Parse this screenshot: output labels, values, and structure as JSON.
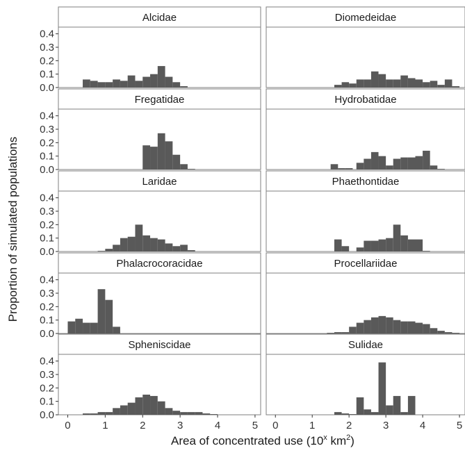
{
  "chart_data": {
    "type": "bar",
    "subtype": "faceted-histogram",
    "xlabel_prefix": "Area of concentrated use (10",
    "xlabel_sup1": "x",
    "xlabel_mid": " km",
    "xlabel_sup2": "2",
    "xlabel_suffix": ")",
    "ylabel": "Proportion of simulated populations",
    "xlim": [
      -0.25,
      5.15
    ],
    "ylim": [
      0,
      0.45
    ],
    "xticks": [
      "0",
      "1",
      "2",
      "3",
      "4",
      "5"
    ],
    "yticks": [
      "0.0",
      "0.1",
      "0.2",
      "0.3",
      "0.4"
    ],
    "bin_width": 0.2,
    "grid": false,
    "legend": "none",
    "bar_color": "#595959",
    "facets": [
      {
        "name": "Alcidae",
        "bins": [
          [
            0.5,
            0.06
          ],
          [
            0.7,
            0.05
          ],
          [
            0.9,
            0.04
          ],
          [
            1.1,
            0.04
          ],
          [
            1.3,
            0.06
          ],
          [
            1.5,
            0.05
          ],
          [
            1.7,
            0.09
          ],
          [
            1.9,
            0.05
          ],
          [
            2.1,
            0.08
          ],
          [
            2.3,
            0.1
          ],
          [
            2.5,
            0.16
          ],
          [
            2.7,
            0.08
          ],
          [
            2.9,
            0.04
          ],
          [
            3.1,
            0.01
          ]
        ]
      },
      {
        "name": "Diomedeidae",
        "bins": [
          [
            1.7,
            0.02
          ],
          [
            1.9,
            0.04
          ],
          [
            2.1,
            0.03
          ],
          [
            2.3,
            0.06
          ],
          [
            2.5,
            0.06
          ],
          [
            2.7,
            0.12
          ],
          [
            2.9,
            0.1
          ],
          [
            3.1,
            0.06
          ],
          [
            3.3,
            0.06
          ],
          [
            3.5,
            0.09
          ],
          [
            3.7,
            0.07
          ],
          [
            3.9,
            0.06
          ],
          [
            4.1,
            0.04
          ],
          [
            4.3,
            0.05
          ],
          [
            4.5,
            0.02
          ],
          [
            4.7,
            0.06
          ],
          [
            4.9,
            0.01
          ]
        ]
      },
      {
        "name": "Fregatidae",
        "bins": [
          [
            2.1,
            0.18
          ],
          [
            2.3,
            0.17
          ],
          [
            2.5,
            0.27
          ],
          [
            2.7,
            0.21
          ],
          [
            2.9,
            0.11
          ],
          [
            3.1,
            0.04
          ],
          [
            3.3,
            0.005
          ]
        ]
      },
      {
        "name": "Hydrobatidae",
        "bins": [
          [
            1.6,
            0.04
          ],
          [
            1.8,
            0.01
          ],
          [
            2.0,
            0.01
          ],
          [
            2.3,
            0.05
          ],
          [
            2.5,
            0.08
          ],
          [
            2.7,
            0.13
          ],
          [
            2.9,
            0.1
          ],
          [
            3.1,
            0.03
          ],
          [
            3.3,
            0.08
          ],
          [
            3.5,
            0.09
          ],
          [
            3.7,
            0.09
          ],
          [
            3.9,
            0.1
          ],
          [
            4.1,
            0.14
          ],
          [
            4.3,
            0.03
          ],
          [
            4.5,
            0.005
          ]
        ]
      },
      {
        "name": "Laridae",
        "bins": [
          [
            0.9,
            0.005
          ],
          [
            1.1,
            0.02
          ],
          [
            1.3,
            0.05
          ],
          [
            1.5,
            0.1
          ],
          [
            1.7,
            0.11
          ],
          [
            1.9,
            0.2
          ],
          [
            2.1,
            0.12
          ],
          [
            2.3,
            0.1
          ],
          [
            2.5,
            0.09
          ],
          [
            2.7,
            0.06
          ],
          [
            2.9,
            0.04
          ],
          [
            3.1,
            0.05
          ],
          [
            3.3,
            0.01
          ]
        ]
      },
      {
        "name": "Phaethontidae",
        "bins": [
          [
            1.7,
            0.09
          ],
          [
            1.9,
            0.04
          ],
          [
            2.3,
            0.03
          ],
          [
            2.5,
            0.08
          ],
          [
            2.7,
            0.08
          ],
          [
            2.9,
            0.09
          ],
          [
            3.1,
            0.1
          ],
          [
            3.3,
            0.2
          ],
          [
            3.5,
            0.12
          ],
          [
            3.7,
            0.09
          ],
          [
            3.9,
            0.09
          ],
          [
            4.1,
            0.005
          ]
        ]
      },
      {
        "name": "Phalacrocoracidae",
        "bins": [
          [
            0.1,
            0.09
          ],
          [
            0.3,
            0.11
          ],
          [
            0.5,
            0.08
          ],
          [
            0.7,
            0.08
          ],
          [
            0.9,
            0.33
          ],
          [
            1.1,
            0.25
          ],
          [
            1.3,
            0.05
          ]
        ]
      },
      {
        "name": "Procellariidae",
        "bins": [
          [
            1.5,
            0.005
          ],
          [
            1.7,
            0.01
          ],
          [
            1.9,
            0.01
          ],
          [
            2.1,
            0.05
          ],
          [
            2.3,
            0.08
          ],
          [
            2.5,
            0.1
          ],
          [
            2.7,
            0.12
          ],
          [
            2.9,
            0.13
          ],
          [
            3.1,
            0.12
          ],
          [
            3.3,
            0.1
          ],
          [
            3.5,
            0.09
          ],
          [
            3.7,
            0.09
          ],
          [
            3.9,
            0.08
          ],
          [
            4.1,
            0.07
          ],
          [
            4.3,
            0.04
          ],
          [
            4.5,
            0.02
          ],
          [
            4.7,
            0.01
          ],
          [
            4.9,
            0.005
          ]
        ]
      },
      {
        "name": "Spheniscidae",
        "bins": [
          [
            0.5,
            0.01
          ],
          [
            0.7,
            0.01
          ],
          [
            0.9,
            0.02
          ],
          [
            1.1,
            0.02
          ],
          [
            1.3,
            0.05
          ],
          [
            1.5,
            0.07
          ],
          [
            1.7,
            0.09
          ],
          [
            1.9,
            0.13
          ],
          [
            2.1,
            0.15
          ],
          [
            2.3,
            0.14
          ],
          [
            2.5,
            0.1
          ],
          [
            2.7,
            0.05
          ],
          [
            2.9,
            0.03
          ],
          [
            3.1,
            0.02
          ],
          [
            3.3,
            0.02
          ],
          [
            3.5,
            0.02
          ],
          [
            3.7,
            0.01
          ],
          [
            3.9,
            0.005
          ]
        ]
      },
      {
        "name": "Sulidae",
        "bins": [
          [
            1.7,
            0.02
          ],
          [
            1.9,
            0.01
          ],
          [
            2.1,
            0.005
          ],
          [
            2.3,
            0.13
          ],
          [
            2.5,
            0.04
          ],
          [
            2.7,
            0.02
          ],
          [
            2.9,
            0.39
          ],
          [
            3.1,
            0.07
          ],
          [
            3.3,
            0.14
          ],
          [
            3.5,
            0.02
          ],
          [
            3.7,
            0.14
          ]
        ]
      }
    ]
  }
}
